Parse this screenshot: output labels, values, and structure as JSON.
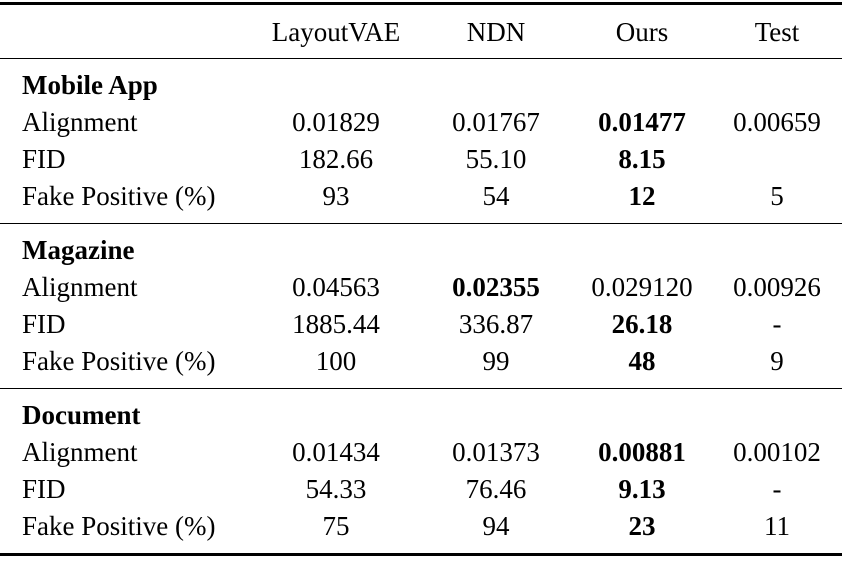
{
  "table": {
    "colors": {
      "text": "#000000",
      "rule": "#000000",
      "background": "#ffffff"
    },
    "columns": [
      "",
      "LayoutVAE",
      "NDN",
      "Ours",
      "Test"
    ],
    "sections": [
      {
        "title": "Mobile App",
        "rows": [
          {
            "label": "Alignment",
            "values": [
              "0.01829",
              "0.01767",
              "0.01477",
              "0.00659"
            ]
          },
          {
            "label": "FID",
            "values": [
              "182.66",
              "55.10",
              "8.15",
              ""
            ]
          },
          {
            "label": "Fake Positive (%)",
            "values": [
              "93",
              "54",
              "12",
              "5"
            ]
          }
        ]
      },
      {
        "title": "Magazine",
        "rows": [
          {
            "label": "Alignment",
            "values": [
              "0.04563",
              "0.02355",
              "0.029120",
              "0.00926"
            ]
          },
          {
            "label": "FID",
            "values": [
              "1885.44",
              "336.87",
              "26.18",
              "-"
            ]
          },
          {
            "label": "Fake Positive (%)",
            "values": [
              "100",
              "99",
              "48",
              "9"
            ]
          }
        ]
      },
      {
        "title": "Document",
        "rows": [
          {
            "label": "Alignment",
            "values": [
              "0.01434",
              "0.01373",
              "0.00881",
              "0.00102"
            ]
          },
          {
            "label": "FID",
            "values": [
              "54.33",
              "76.46",
              "9.13",
              "-"
            ]
          },
          {
            "label": "Fake Positive (%)",
            "values": [
              "75",
              "94",
              "23",
              "11"
            ]
          }
        ]
      }
    ]
  }
}
